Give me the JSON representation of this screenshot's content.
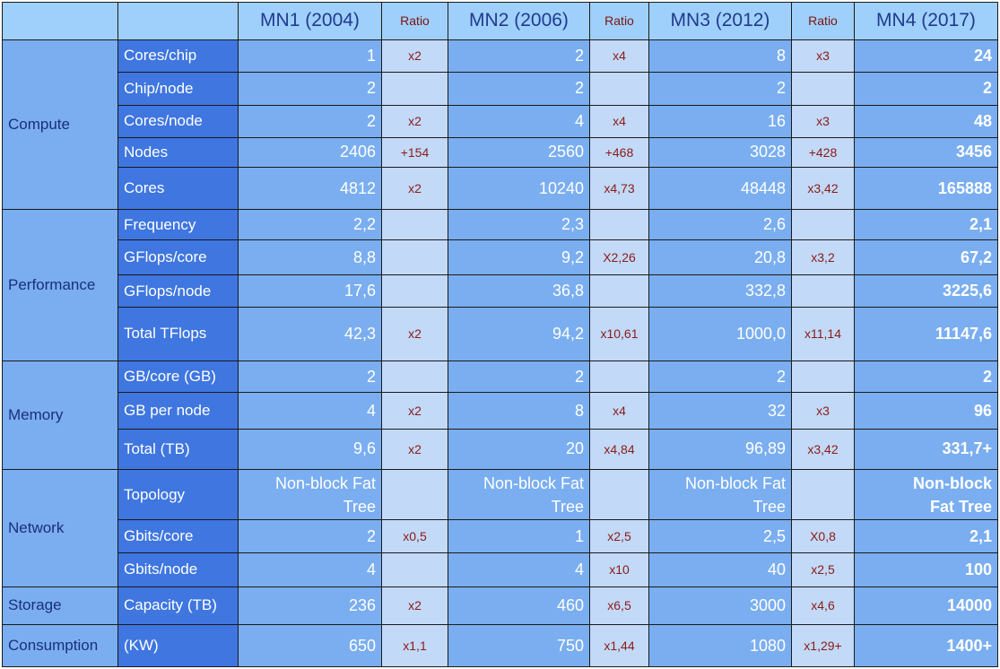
{
  "header": {
    "mn1": "MN1 (2004)",
    "mn2": "MN2 (2006)",
    "mn3": "MN3 (2012)",
    "mn4": "MN4 (2017)",
    "ratio": "Ratio"
  },
  "groups": {
    "compute": "Compute",
    "performance": "Performance",
    "memory": "Memory",
    "network": "Network",
    "storage": "Storage",
    "consumption": "Consumption"
  },
  "rows": [
    {
      "metric": "Cores/chip",
      "mn1": "1",
      "r1": "x2",
      "mn2": "2",
      "r2": "x4",
      "mn3": "8",
      "r3": "x3",
      "mn4": "24"
    },
    {
      "metric": "Chip/node",
      "mn1": "2",
      "r1": "",
      "mn2": "2",
      "r2": "",
      "mn3": "2",
      "r3": "",
      "mn4": "2"
    },
    {
      "metric": "Cores/node",
      "mn1": "2",
      "r1": "x2",
      "mn2": "4",
      "r2": "x4",
      "mn3": "16",
      "r3": "x3",
      "mn4": "48"
    },
    {
      "metric": "Nodes",
      "mn1": "2406",
      "r1": "+154",
      "mn2": "2560",
      "r2": "+468",
      "mn3": "3028",
      "r3": "+428",
      "mn4": "3456"
    },
    {
      "metric": "Cores",
      "mn1": "4812",
      "r1": "x2",
      "mn2": "10240",
      "r2": "x4,73",
      "mn3": "48448",
      "r3": "x3,42",
      "mn4": "165888"
    },
    {
      "metric": "Frequency",
      "mn1": "2,2",
      "r1": "",
      "mn2": "2,3",
      "r2": "",
      "mn3": "2,6",
      "r3": "",
      "mn4": "2,1"
    },
    {
      "metric": "GFlops/core",
      "mn1": "8,8",
      "r1": "",
      "mn2": "9,2",
      "r2": "X2,26",
      "mn3": "20,8",
      "r3": "x3,2",
      "mn4": "67,2"
    },
    {
      "metric": "GFlops/node",
      "mn1": "17,6",
      "r1": "",
      "mn2": "36,8",
      "r2": "",
      "mn3": "332,8",
      "r3": "",
      "mn4": "3225,6"
    },
    {
      "metric": "Total TFlops",
      "mn1": "42,3",
      "r1": "x2",
      "mn2": "94,2",
      "r2": "x10,61",
      "mn3": "1000,0",
      "r3": "x11,14",
      "mn4": "11147,6"
    },
    {
      "metric": "GB/core (GB)",
      "mn1": "2",
      "r1": "",
      "mn2": "2",
      "r2": "",
      "mn3": "2",
      "r3": "",
      "mn4": "2"
    },
    {
      "metric": "GB per node",
      "mn1": "4",
      "r1": "x2",
      "mn2": "8",
      "r2": "x4",
      "mn3": "32",
      "r3": "x3",
      "mn4": "96"
    },
    {
      "metric": "Total (TB)",
      "mn1": "9,6",
      "r1": "x2",
      "mn2": "20",
      "r2": "x4,84",
      "mn3": "96,89",
      "r3": "x3,42",
      "mn4": "331,7+"
    },
    {
      "metric": "Topology",
      "mn1a": "Non-block Fat",
      "mn1b": "Tree",
      "r1": "",
      "mn2a": "Non-block Fat",
      "mn2b": "Tree",
      "r2": "",
      "mn3a": "Non-block Fat",
      "mn3b": "Tree",
      "r3": "",
      "mn4a": "Non-block",
      "mn4b": "Fat Tree"
    },
    {
      "metric": "Gbits/core",
      "mn1": "2",
      "r1": "x0,5",
      "mn2": "1",
      "r2": "x2,5",
      "mn3": "2,5",
      "r3": "X0,8",
      "mn4": "2,1"
    },
    {
      "metric": "Gbits/node",
      "mn1": "4",
      "r1": "",
      "mn2": "4",
      "r2": "x10",
      "mn3": "40",
      "r3": "x2,5",
      "mn4": "100"
    },
    {
      "metric": "Capacity (TB)",
      "mn1": "236",
      "r1": "x2",
      "mn2": "460",
      "r2": "x6,5",
      "mn3": "3000",
      "r3": "x4,6",
      "mn4": "14000"
    },
    {
      "metric": "(KW)",
      "mn1": "650",
      "r1": "x1,1",
      "mn2": "750",
      "r2": "x1,44",
      "mn3": "1080",
      "r3": "x1,29+",
      "mn4": "1400+"
    }
  ]
}
